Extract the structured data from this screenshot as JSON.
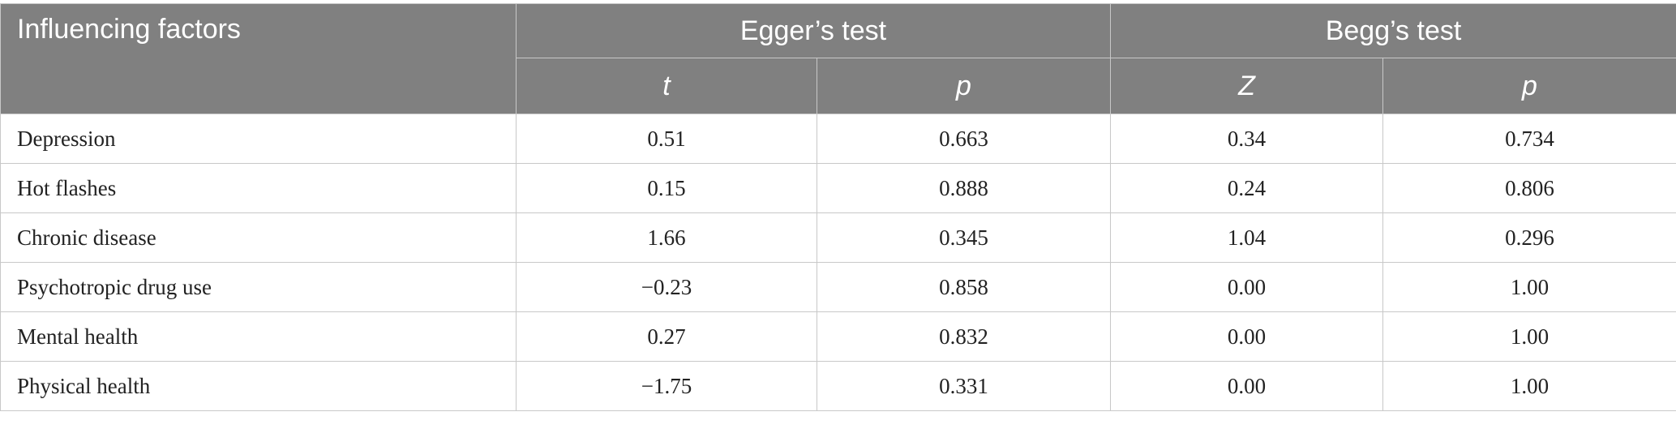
{
  "table": {
    "header": {
      "factor_label": "Influencing factors",
      "groups": [
        "Egger’s test",
        "Begg’s test"
      ],
      "subheaders": [
        "t",
        "p",
        "Z",
        "p"
      ]
    },
    "rows": [
      {
        "factor": "Depression",
        "egger_t": "0.51",
        "egger_p": "0.663",
        "begg_z": "0.34",
        "begg_p": "0.734"
      },
      {
        "factor": "Hot flashes",
        "egger_t": "0.15",
        "egger_p": "0.888",
        "begg_z": "0.24",
        "begg_p": "0.806"
      },
      {
        "factor": "Chronic disease",
        "egger_t": "1.66",
        "egger_p": "0.345",
        "begg_z": "1.04",
        "begg_p": "0.296"
      },
      {
        "factor": "Psychotropic drug use",
        "egger_t": "−0.23",
        "egger_p": "0.858",
        "begg_z": "0.00",
        "begg_p": "1.00"
      },
      {
        "factor": "Mental health",
        "egger_t": "0.27",
        "egger_p": "0.832",
        "begg_z": "0.00",
        "begg_p": "1.00"
      },
      {
        "factor": "Physical health",
        "egger_t": "−1.75",
        "egger_p": "0.331",
        "begg_z": "0.00",
        "begg_p": "1.00"
      }
    ],
    "colors": {
      "header_bg": "#808080",
      "header_text": "#ffffff",
      "grid": "#c8c8c8"
    }
  }
}
